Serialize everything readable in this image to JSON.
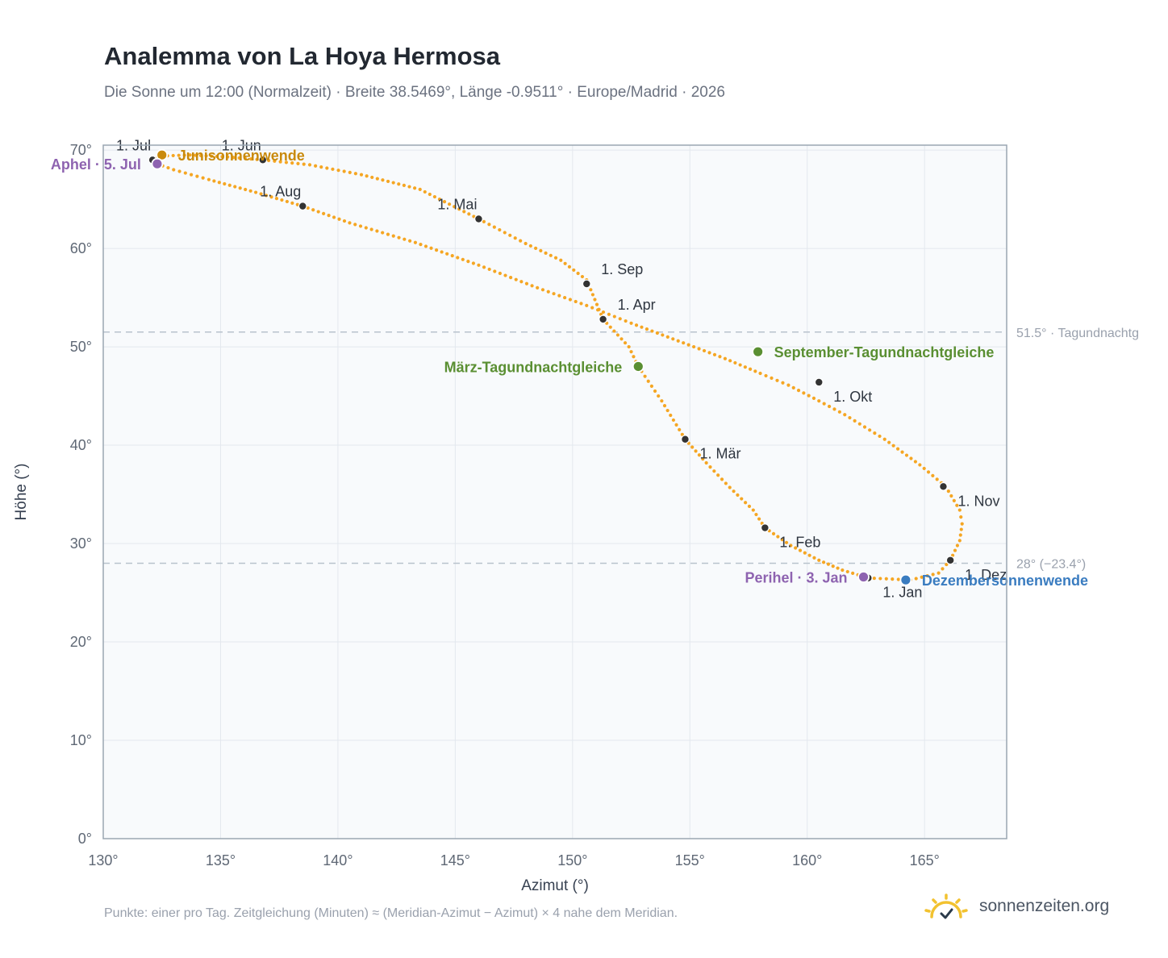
{
  "page": {
    "title": "Analemma von La Hoya Hermosa",
    "subtitle": "Die Sonne um 12:00 (Normalzeit) · Breite 38.5469°, Länge -0.9511° · Europe/Madrid · 2026",
    "footnote": "Punkte: einer pro Tag. Zeitgleichung (Minuten) ≈ (Meridian-Azimut − Azimut) × 4 nahe dem Meridian.",
    "brand": "sonnenzeiten.org"
  },
  "colors": {
    "curve": "#f5a623",
    "month_dot": "#333333",
    "equinox": "#5a8f32",
    "june_solstice": "#c98a0c",
    "december_solstice": "#3a7cc0",
    "apsis": "#8e63b0",
    "reference_line": "#b9c3cd",
    "plot_bg": "#f8fafc",
    "grid": "#e3e8ee",
    "axis": "#9aa6b2",
    "brand_sun": "#f2c230"
  },
  "chart_data": {
    "type": "scatter",
    "title": "Analemma von La Hoya Hermosa",
    "xlabel": "Azimut (°)",
    "ylabel": "Höhe (°)",
    "xlim": [
      130,
      168.5
    ],
    "ylim": [
      0,
      70.5
    ],
    "x_ticks": [
      130,
      135,
      140,
      145,
      150,
      155,
      160,
      165
    ],
    "x_tick_labels": [
      "130°",
      "135°",
      "140°",
      "145°",
      "150°",
      "155°",
      "160°",
      "165°"
    ],
    "y_ticks": [
      0,
      10,
      20,
      30,
      40,
      50,
      60,
      70
    ],
    "y_tick_labels": [
      "0°",
      "10°",
      "20°",
      "30°",
      "40°",
      "50°",
      "60°",
      "70°"
    ],
    "grid": true,
    "analemma_path": [
      [
        162.6,
        26.5
      ],
      [
        164.4,
        26.3
      ],
      [
        165.6,
        27.0
      ],
      [
        166.1,
        28.3
      ],
      [
        166.5,
        30.3
      ],
      [
        166.6,
        32.0
      ],
      [
        166.5,
        33.4
      ],
      [
        165.9,
        35.8
      ],
      [
        164.8,
        38.0
      ],
      [
        163.3,
        40.6
      ],
      [
        161.6,
        43.1
      ],
      [
        160.5,
        44.5
      ],
      [
        159.2,
        46.1
      ],
      [
        158.0,
        47.3
      ],
      [
        156.5,
        48.8
      ],
      [
        154.5,
        50.6
      ],
      [
        152.5,
        52.4
      ],
      [
        150.6,
        54.2
      ],
      [
        148.5,
        56.0
      ],
      [
        146.0,
        58.3
      ],
      [
        143.3,
        60.6
      ],
      [
        140.5,
        62.6
      ],
      [
        138.5,
        64.3
      ],
      [
        136.5,
        65.7
      ],
      [
        134.5,
        67.0
      ],
      [
        133.0,
        68.0
      ],
      [
        132.3,
        68.6
      ],
      [
        132.1,
        69.0
      ],
      [
        132.5,
        69.4
      ],
      [
        133.7,
        69.5
      ],
      [
        135.3,
        69.3
      ],
      [
        136.8,
        69.0
      ],
      [
        138.8,
        68.5
      ],
      [
        141.0,
        67.5
      ],
      [
        143.5,
        66.0
      ],
      [
        146.0,
        63.0
      ],
      [
        148.0,
        60.5
      ],
      [
        149.5,
        58.8
      ],
      [
        150.6,
        56.8
      ],
      [
        151.3,
        52.8
      ],
      [
        152.4,
        50.0
      ],
      [
        152.8,
        48.0
      ],
      [
        153.8,
        44.5
      ],
      [
        154.8,
        40.6
      ],
      [
        155.7,
        38.2
      ],
      [
        156.7,
        35.7
      ],
      [
        157.7,
        33.4
      ],
      [
        158.2,
        31.6
      ],
      [
        159.3,
        29.8
      ],
      [
        160.5,
        28.3
      ],
      [
        161.5,
        27.3
      ],
      [
        162.6,
        26.5
      ]
    ],
    "month_markers": [
      {
        "label": "1. Jan",
        "x": 162.6,
        "y": 26.5,
        "label_pos": "below-right"
      },
      {
        "label": "1. Feb",
        "x": 158.2,
        "y": 31.6,
        "label_pos": "below-right"
      },
      {
        "label": "1. Mär",
        "x": 154.8,
        "y": 40.6,
        "label_pos": "below-right"
      },
      {
        "label": "1. Apr",
        "x": 151.3,
        "y": 52.8,
        "label_pos": "above-right"
      },
      {
        "label": "1. Mai",
        "x": 146.0,
        "y": 63.0,
        "label_pos": "above-left"
      },
      {
        "label": "1. Jun",
        "x": 136.8,
        "y": 69.0,
        "label_pos": "above-left"
      },
      {
        "label": "1. Jul",
        "x": 132.1,
        "y": 69.0,
        "label_pos": "above-left"
      },
      {
        "label": "1. Aug",
        "x": 138.5,
        "y": 64.3,
        "label_pos": "above-left"
      },
      {
        "label": "1. Sep",
        "x": 150.6,
        "y": 56.4,
        "label_pos": "above-right"
      },
      {
        "label": "1. Okt",
        "x": 160.5,
        "y": 46.4,
        "label_pos": "below-right"
      },
      {
        "label": "1. Nov",
        "x": 165.8,
        "y": 35.8,
        "label_pos": "below-right"
      },
      {
        "label": "1. Dez",
        "x": 166.1,
        "y": 28.3,
        "label_pos": "below-right"
      }
    ],
    "events": [
      {
        "label": "Junisonnenwende",
        "x": 132.5,
        "y": 69.5,
        "kind": "june_solstice",
        "label_side": "right"
      },
      {
        "label": "Aphel · 5. Jul",
        "x": 132.3,
        "y": 68.6,
        "kind": "apsis",
        "label_side": "left"
      },
      {
        "label": "März-Tagundnachtgleiche",
        "x": 152.8,
        "y": 48.0,
        "kind": "equinox",
        "label_side": "left"
      },
      {
        "label": "September-Tagundnachtgleiche",
        "x": 157.9,
        "y": 49.5,
        "kind": "equinox",
        "label_side": "right"
      },
      {
        "label": "Perihel · 3. Jan",
        "x": 162.4,
        "y": 26.6,
        "kind": "apsis",
        "label_side": "left"
      },
      {
        "label": "Dezembersonnenwende",
        "x": 164.2,
        "y": 26.3,
        "kind": "december_solstice",
        "label_side": "right"
      }
    ],
    "reference_lines": [
      {
        "y": 51.5,
        "label": "51.5° · Tagundnachtg"
      },
      {
        "y": 28.0,
        "label": "28° (−23.4°)"
      }
    ]
  }
}
